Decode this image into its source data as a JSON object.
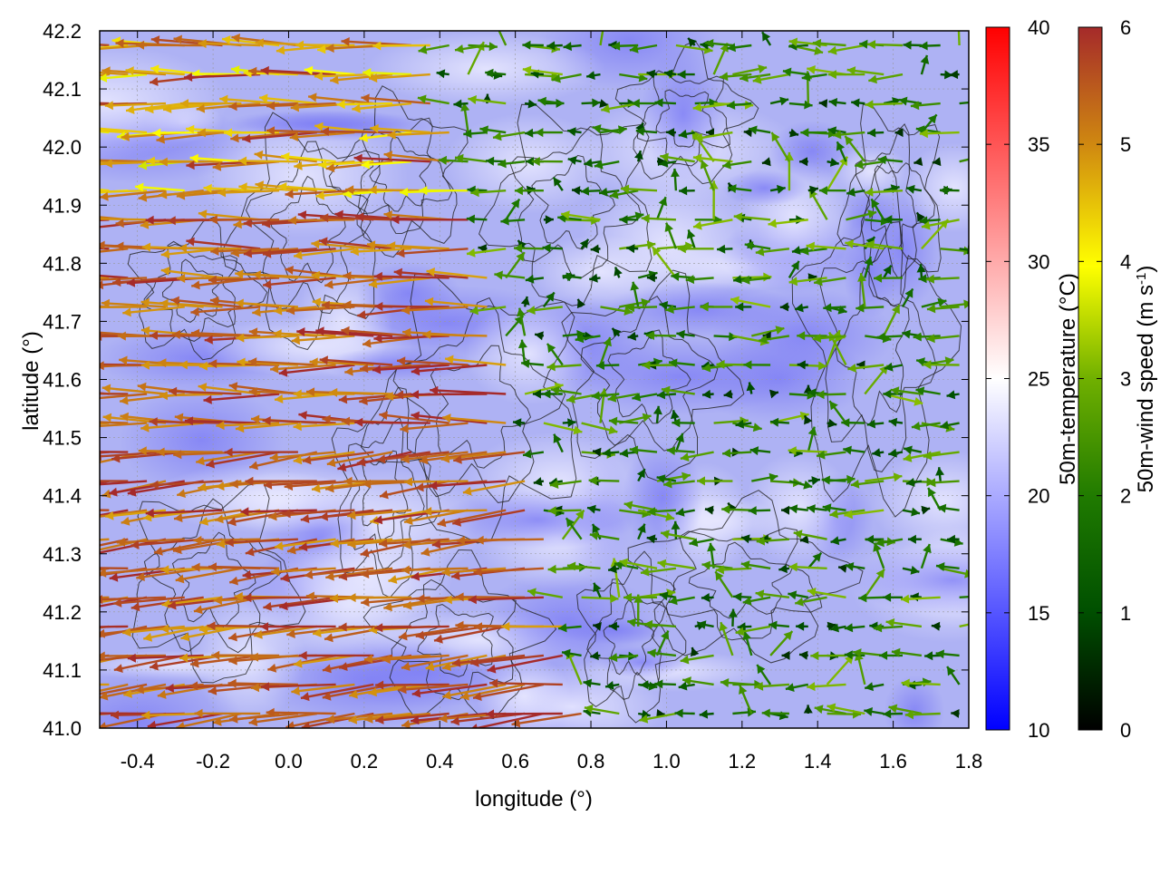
{
  "chart_data": {
    "type": "vector-field",
    "title": "",
    "xlabel": "longitude (°)",
    "ylabel": "latitude (°)",
    "xlim": [
      -0.5,
      1.8
    ],
    "ylim": [
      41.0,
      42.2
    ],
    "x_ticks": [
      "-0.4",
      "-0.2",
      "0.0",
      "0.2",
      "0.4",
      "0.6",
      "0.8",
      "1.0",
      "1.2",
      "1.4",
      "1.6",
      "1.8"
    ],
    "x_tick_values": [
      -0.4,
      -0.2,
      0.0,
      0.2,
      0.4,
      0.6,
      0.8,
      1.0,
      1.2,
      1.4,
      1.6,
      1.8
    ],
    "y_ticks": [
      "41.0",
      "41.1",
      "41.2",
      "41.3",
      "41.4",
      "41.5",
      "41.6",
      "41.7",
      "41.8",
      "41.9",
      "42.0",
      "42.1",
      "42.2"
    ],
    "y_tick_values": [
      41.0,
      41.1,
      41.2,
      41.3,
      41.4,
      41.5,
      41.6,
      41.7,
      41.8,
      41.9,
      42.0,
      42.1,
      42.2
    ],
    "grid": true,
    "background_field": {
      "name": "50m-temperature",
      "colorbar_label": "50m-temperature (°C)",
      "range": [
        10,
        40
      ],
      "ticks": [
        "10",
        "15",
        "20",
        "25",
        "30",
        "35",
        "40"
      ],
      "tick_values": [
        10,
        15,
        20,
        25,
        30,
        35,
        40
      ],
      "colors": [
        "#0000ff",
        "#ffffff",
        "#ff0000"
      ],
      "typical_value": 18
    },
    "vector_field": {
      "name": "50m-wind speed",
      "colorbar_label": "50m-wind speed (m s-1)",
      "colorbar_unit_base": "50m-wind speed (m s",
      "colorbar_unit_exp": "-1",
      "colorbar_unit_close": ")",
      "range": [
        0,
        6
      ],
      "ticks": [
        "0",
        "1",
        "2",
        "3",
        "4",
        "5",
        "6"
      ],
      "tick_values": [
        0,
        1,
        2,
        3,
        4,
        5,
        6
      ],
      "colors": [
        "#000000",
        "#006400",
        "#2e8b00",
        "#88c000",
        "#ffff00",
        "#d4a000",
        "#c06420",
        "#a52a2a"
      ],
      "grid_spacing_deg": 0.05,
      "west_region": {
        "lon_range": [
          -0.5,
          0.8
        ],
        "direction": "westward",
        "typical_speed_ms": [
          4.5,
          6.0
        ]
      },
      "east_region": {
        "lon_range": [
          0.8,
          1.8
        ],
        "direction": "variable / westward",
        "typical_speed_ms": [
          0.5,
          3.0
        ]
      }
    },
    "contours": {
      "color": "#333333",
      "description": "terrain elevation isolines"
    }
  },
  "colors": {
    "frame": "#000000",
    "grid": "#999999",
    "contour": "#222222"
  }
}
